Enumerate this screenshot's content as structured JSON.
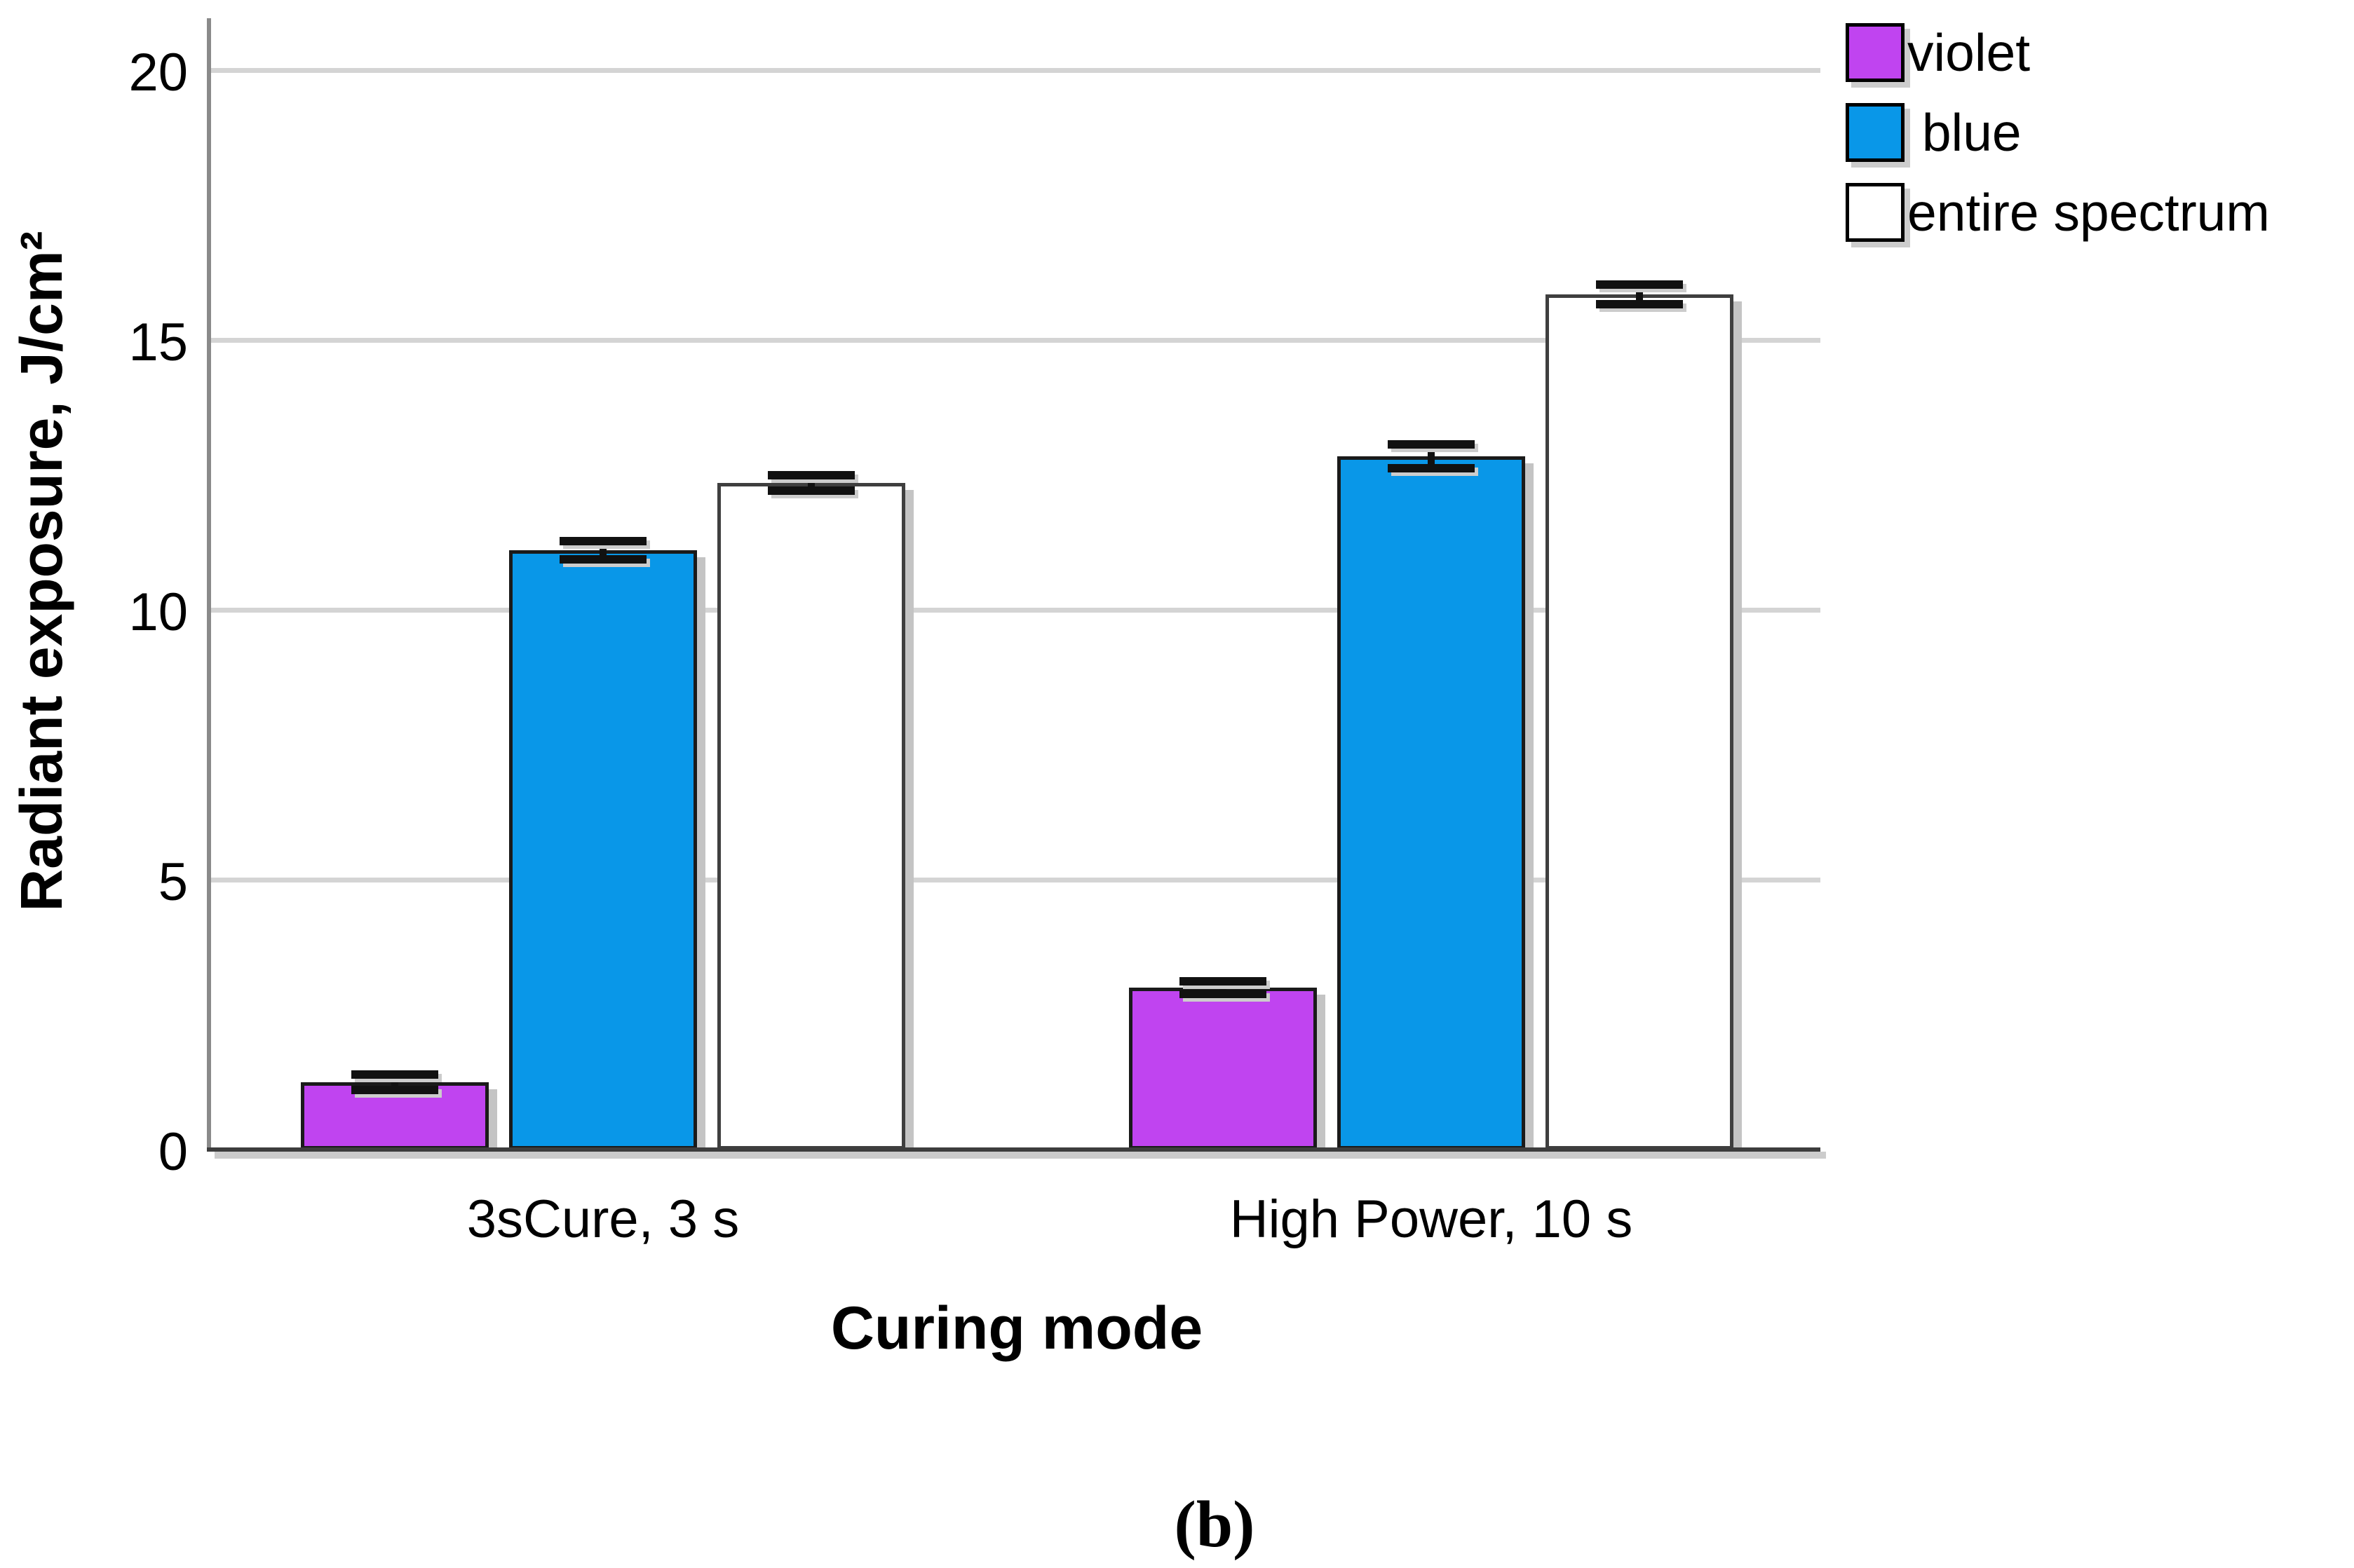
{
  "chart_data": {
    "type": "bar",
    "title": "",
    "xlabel": "Curing mode",
    "ylabel": "Radiant exposure, J/cm²",
    "categories": [
      "3sCure, 3 s",
      "High Power, 10 s"
    ],
    "series": [
      {
        "name": "violet",
        "color": "#c044f0",
        "values": [
          1.25,
          3.0
        ],
        "errors": [
          0.08,
          0.05
        ]
      },
      {
        "name": " blue",
        "color": "#0997e8",
        "values": [
          11.1,
          12.85
        ],
        "errors": [
          0.1,
          0.15
        ]
      },
      {
        "name": "entire spectrum",
        "color": "#ffffff",
        "values": [
          12.35,
          15.85
        ],
        "errors": [
          0.08,
          0.12
        ]
      }
    ],
    "ylim": [
      0,
      21
    ],
    "yticks": [
      0,
      5,
      10,
      15,
      20
    ],
    "grid": true,
    "legend_position": "top-right",
    "legend_labels": [
      "violet",
      " blue",
      "entire spectrum"
    ]
  },
  "caption": "(b)",
  "colors": {
    "gridline": "#d4d4d4",
    "y_axis": "#8a8a8a",
    "x_axis": "#3d3d3d",
    "axis_shadow": "#cccccc",
    "bar_border": "#1a1a1a",
    "white_bar_border": "#3f3f3f",
    "bar_shadow": "#c4c4c4",
    "error_bar": "#111111",
    "text": "#000000"
  }
}
